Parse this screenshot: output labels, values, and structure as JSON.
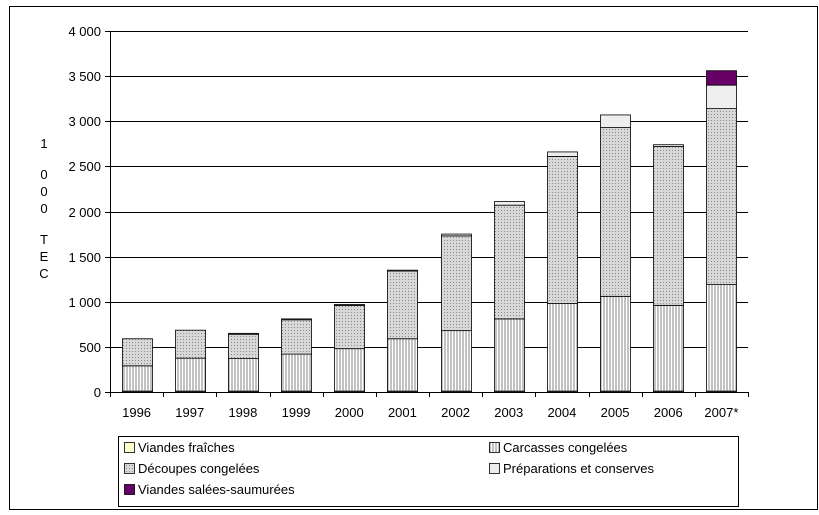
{
  "chart_data": {
    "type": "bar",
    "stacked": true,
    "ylabel": "1 000 TEC",
    "ylim": [
      0,
      4000
    ],
    "yticks": [
      0,
      500,
      1000,
      1500,
      2000,
      2500,
      3000,
      3500,
      4000
    ],
    "ytick_labels": [
      "0",
      "500",
      "1 000",
      "1 500",
      "2 000",
      "2 500",
      "3 000",
      "3 500",
      "4 000"
    ],
    "grid": true,
    "legend_position": "bottom",
    "categories": [
      "1996",
      "1997",
      "1998",
      "1999",
      "2000",
      "2001",
      "2002",
      "2003",
      "2004",
      "2005",
      "2006",
      "2007*"
    ],
    "series": [
      {
        "name": "Viandes fraîches",
        "color": "#ffffcc",
        "values": [
          10,
          10,
          10,
          10,
          10,
          10,
          10,
          10,
          10,
          10,
          10,
          10
        ]
      },
      {
        "name": "Carcasses congelées",
        "color": "#ffffff",
        "pattern": "vertical-lines",
        "values": [
          280,
          365,
          360,
          410,
          470,
          580,
          670,
          800,
          970,
          1050,
          950,
          1180
        ]
      },
      {
        "name": "Découpes congelées",
        "color": "#d4d4d4",
        "pattern": "dots",
        "values": [
          300,
          310,
          270,
          380,
          480,
          750,
          1050,
          1260,
          1630,
          1870,
          1760,
          1950
        ]
      },
      {
        "name": "Préparations et conserves",
        "color": "#eeeeee",
        "values": [
          0,
          0,
          10,
          10,
          10,
          10,
          20,
          40,
          50,
          140,
          20,
          260
        ]
      },
      {
        "name": "Viandes salées-saumurées",
        "color": "#660066",
        "values": [
          0,
          0,
          0,
          0,
          0,
          0,
          0,
          0,
          0,
          0,
          0,
          160
        ]
      }
    ],
    "legend": {
      "entries": [
        "Viandes fraîches",
        "Carcasses congelées",
        "Découpes congelées",
        "Préparations et conserves",
        "Viandes salées-saumurées"
      ]
    }
  }
}
